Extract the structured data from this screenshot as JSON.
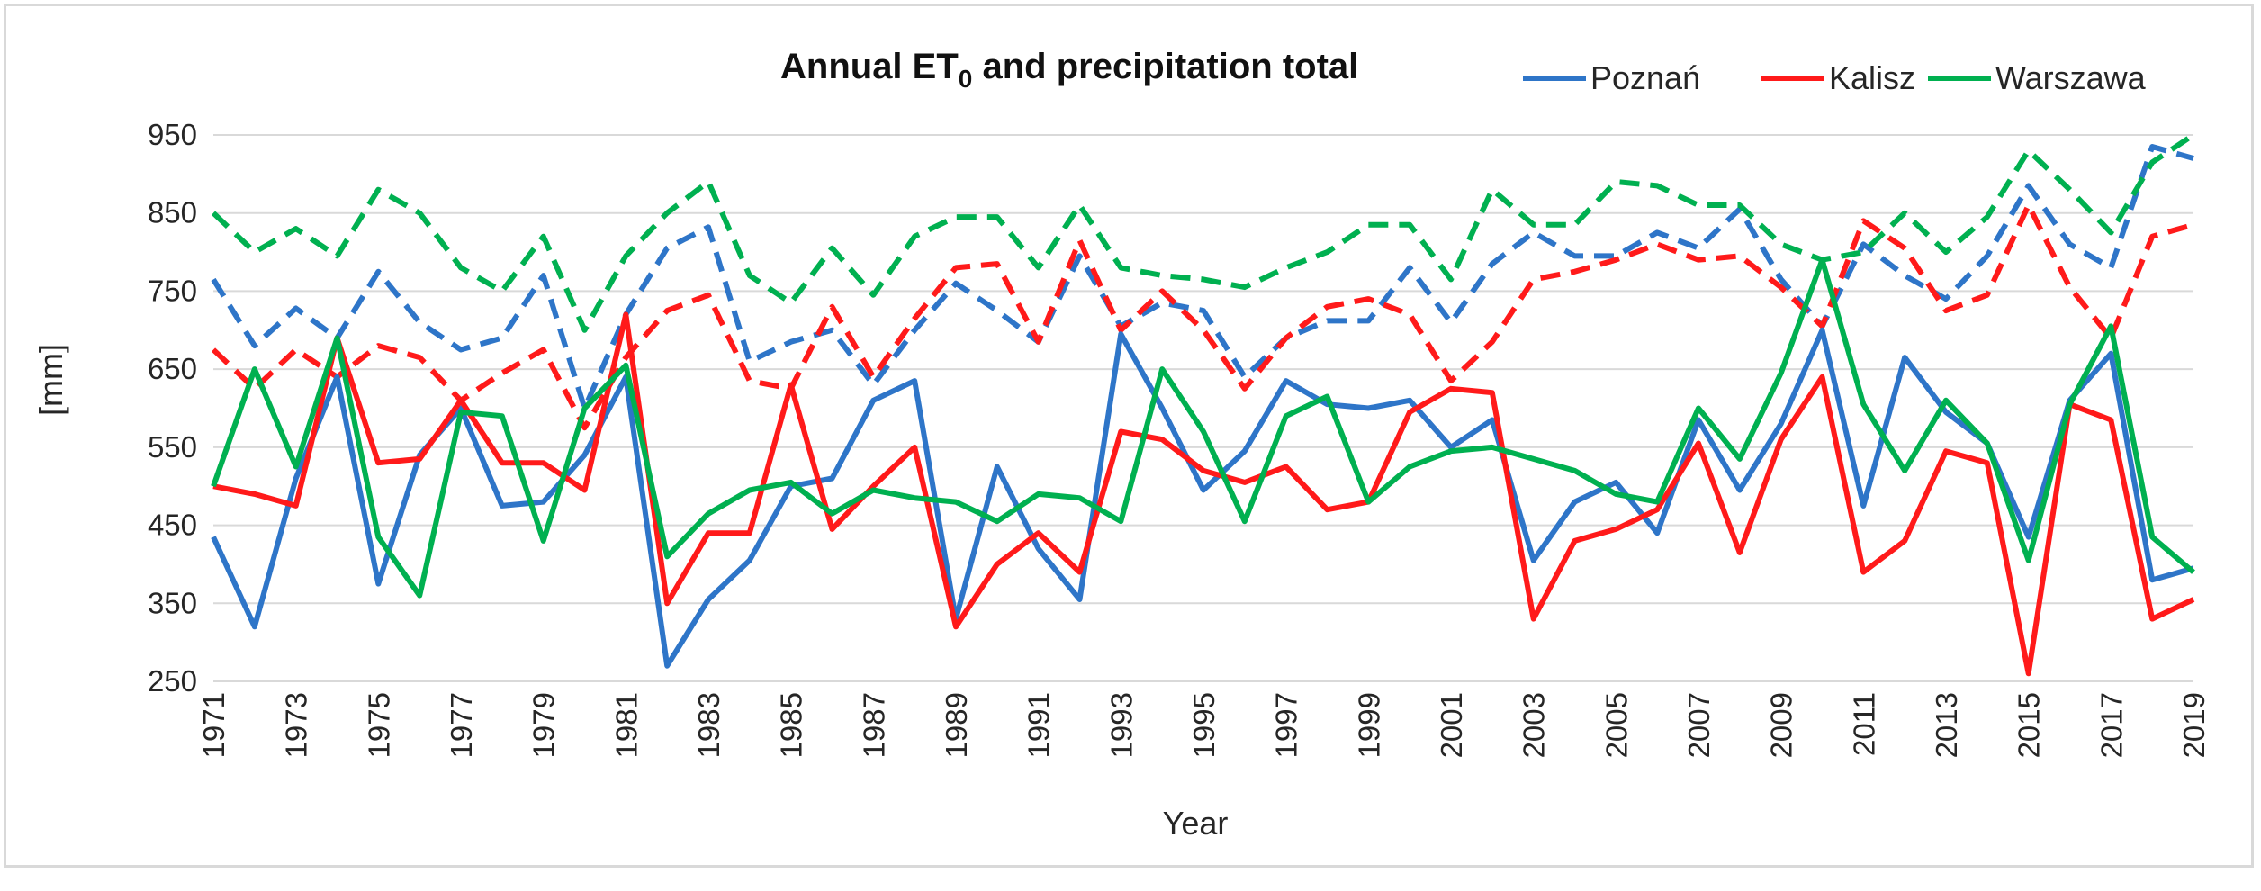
{
  "chart_data": {
    "type": "line",
    "title": "Annual ET",
    "title_subscript": "0",
    "title_suffix": " and precipitation total",
    "xlabel": "Year",
    "ylabel": "[mm]",
    "ylim": [
      250,
      950
    ],
    "yticks": [
      250,
      350,
      450,
      550,
      650,
      750,
      850,
      950
    ],
    "grid": true,
    "legend_position": "top-right",
    "legend": [
      {
        "name": "Poznań",
        "color": "#2e75c8"
      },
      {
        "name": "Kalisz",
        "color": "#ff1a1a"
      },
      {
        "name": "Warszawa",
        "color": "#00b050"
      }
    ],
    "x": [
      1971,
      1972,
      1973,
      1974,
      1975,
      1976,
      1977,
      1978,
      1979,
      1980,
      1981,
      1982,
      1983,
      1984,
      1985,
      1986,
      1987,
      1988,
      1989,
      1990,
      1991,
      1992,
      1993,
      1994,
      1995,
      1996,
      1997,
      1998,
      1999,
      2000,
      2001,
      2002,
      2003,
      2004,
      2005,
      2006,
      2007,
      2008,
      2009,
      2010,
      2011,
      2012,
      2013,
      2014,
      2015,
      2016,
      2017,
      2018,
      2019
    ],
    "xtick_labels": [
      "1971",
      "1973",
      "1975",
      "1977",
      "1979",
      "1981",
      "1983",
      "1985",
      "1987",
      "1989",
      "1991",
      "1993",
      "1995",
      "1997",
      "1999",
      "2001",
      "2003",
      "2005",
      "2007",
      "2009",
      "2011",
      "2013",
      "2015",
      "2017",
      "2019"
    ],
    "series": [
      {
        "name": "Poznań ET0",
        "station": "Poznań",
        "style": "dashed",
        "color": "#2e75c8",
        "values": [
          765,
          680,
          728,
          690,
          775,
          710,
          675,
          690,
          770,
          600,
          720,
          805,
          832,
          660,
          685,
          700,
          630,
          700,
          760,
          725,
          685,
          795,
          705,
          735,
          725,
          640,
          690,
          712,
          712,
          780,
          710,
          785,
          825,
          795,
          795,
          825,
          805,
          855,
          765,
          705,
          810,
          770,
          740,
          795,
          885,
          810,
          780,
          935,
          920
        ]
      },
      {
        "name": "Kalisz ET0",
        "station": "Kalisz",
        "style": "dashed",
        "color": "#ff1a1a",
        "values": [
          675,
          625,
          675,
          640,
          680,
          665,
          610,
          645,
          675,
          575,
          665,
          725,
          745,
          635,
          625,
          730,
          640,
          715,
          780,
          785,
          685,
          815,
          700,
          750,
          700,
          625,
          690,
          730,
          740,
          720,
          635,
          685,
          765,
          775,
          790,
          810,
          790,
          795,
          755,
          705,
          840,
          805,
          725,
          745,
          860,
          755,
          690,
          820,
          835
        ]
      },
      {
        "name": "Warszawa ET0",
        "station": "Warszawa",
        "style": "dashed",
        "color": "#00b050",
        "values": [
          850,
          800,
          830,
          795,
          880,
          850,
          780,
          750,
          820,
          700,
          795,
          850,
          890,
          770,
          735,
          805,
          745,
          820,
          845,
          845,
          780,
          860,
          780,
          770,
          765,
          755,
          780,
          800,
          835,
          835,
          765,
          880,
          835,
          835,
          890,
          885,
          860,
          860,
          810,
          790,
          800,
          850,
          800,
          845,
          930,
          880,
          825,
          915,
          950
        ]
      },
      {
        "name": "Poznań precipitation",
        "station": "Poznań",
        "style": "solid",
        "color": "#2e75c8",
        "values": [
          435,
          320,
          510,
          640,
          375,
          540,
          600,
          475,
          480,
          540,
          640,
          270,
          355,
          405,
          500,
          510,
          610,
          635,
          330,
          525,
          420,
          355,
          695,
          600,
          495,
          545,
          635,
          605,
          600,
          610,
          550,
          585,
          405,
          480,
          505,
          440,
          585,
          495,
          580,
          700,
          475,
          665,
          595,
          555,
          435,
          610,
          670,
          380,
          395
        ]
      },
      {
        "name": "Kalisz precipitation",
        "station": "Kalisz",
        "style": "solid",
        "color": "#ff1a1a",
        "values": [
          500,
          490,
          475,
          690,
          530,
          535,
          610,
          530,
          530,
          495,
          720,
          350,
          440,
          440,
          630,
          445,
          500,
          550,
          320,
          400,
          440,
          390,
          570,
          560,
          520,
          505,
          525,
          470,
          480,
          595,
          625,
          620,
          330,
          430,
          445,
          470,
          555,
          415,
          560,
          640,
          390,
          430,
          545,
          530,
          260,
          605,
          585,
          330,
          355
        ]
      },
      {
        "name": "Warszawa precipitation",
        "station": "Warszawa",
        "style": "solid",
        "color": "#00b050",
        "values": [
          500,
          650,
          525,
          690,
          435,
          360,
          595,
          590,
          430,
          600,
          655,
          410,
          465,
          495,
          505,
          465,
          495,
          485,
          480,
          455,
          490,
          485,
          455,
          650,
          570,
          455,
          590,
          615,
          480,
          525,
          545,
          550,
          535,
          520,
          490,
          480,
          600,
          535,
          645,
          790,
          605,
          520,
          610,
          555,
          405,
          605,
          705,
          435,
          390
        ]
      }
    ]
  }
}
